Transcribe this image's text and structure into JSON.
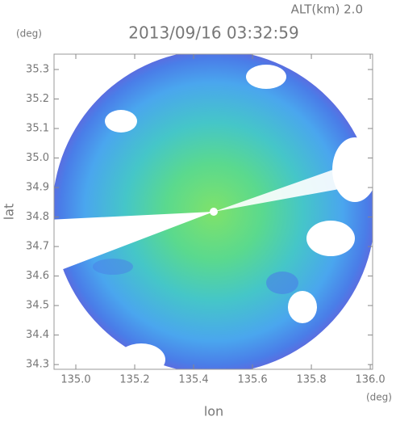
{
  "chart_data": {
    "type": "radar-image",
    "title": "2013/09/16 03:32:59",
    "altitude_label": "ALT(km) 2.0",
    "x_label": "lon",
    "x_unit": "(deg)",
    "y_label": "lat",
    "y_unit": "(deg)",
    "xlim": [
      134.926,
      136.008
    ],
    "ylim": [
      34.284,
      35.352
    ],
    "xticks": [
      {
        "value": 135.0,
        "label": "135.0"
      },
      135.2,
      135.4,
      135.6,
      135.8,
      {
        "value": 136.0,
        "label": "136.0"
      }
    ],
    "yticks": [
      34.3,
      34.4,
      34.5,
      34.6,
      34.7,
      34.8,
      34.9,
      {
        "value": 35.0,
        "label": "35.0"
      },
      35.1,
      35.2,
      35.3
    ]
  }
}
